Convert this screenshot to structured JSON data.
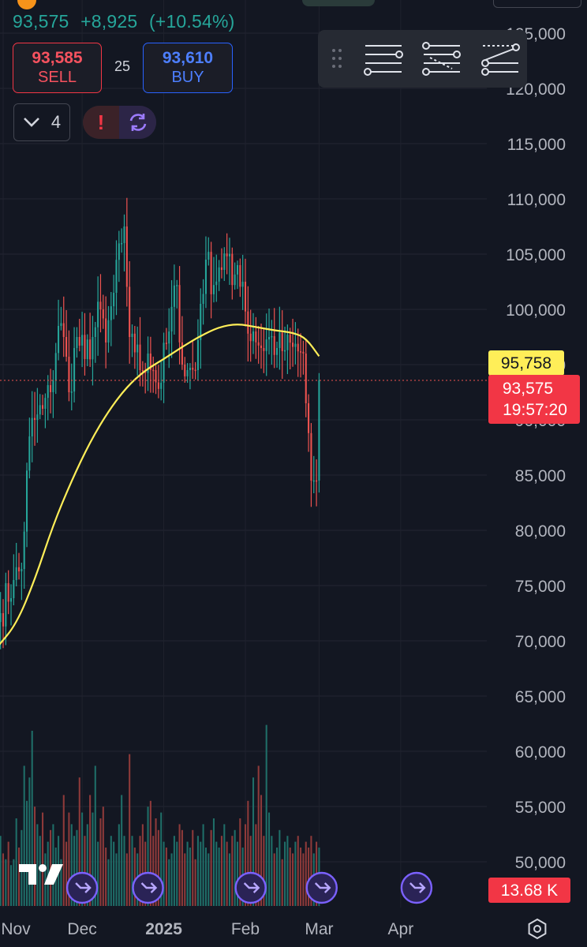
{
  "header": {
    "last_price": "93,575",
    "change": "+8,925",
    "change_pct": "(+10.54%)"
  },
  "trade_panel": {
    "sell_price": "93,585",
    "sell_label": "SELL",
    "spread": "25",
    "buy_price": "93,610",
    "buy_label": "BUY"
  },
  "indicators_toggle": {
    "count": "4"
  },
  "price_labels": {
    "ma_value": "95,758",
    "last_value": "93,575",
    "countdown": "19:57:20",
    "volume_value": "13.68 K"
  },
  "icons": [
    "bitcoin-logo",
    "chevron-down-icon",
    "alert-exclamation-icon",
    "sync-icon",
    "drag-handle-icon",
    "horizontal-lines-icon",
    "parallel-channel-icon",
    "trend-lines-icon",
    "event-arrow-icon",
    "settings-hexagon-icon",
    "tradingview-logo"
  ],
  "colors": {
    "background": "#131722",
    "up": "#26a69a",
    "down": "#ef5350",
    "volume_up": "#1f6e68",
    "volume_down": "#8e3a3a",
    "moving_average": "#ffee58",
    "ma_label_bg": "#ffee58",
    "price_label_bg": "#f23645",
    "event_accent": "#7b61ff"
  },
  "chart_data": {
    "type": "candlestick",
    "interval": "1D",
    "y_axis": {
      "ticks": [
        "50,000",
        "55,000",
        "60,000",
        "65,000",
        "70,000",
        "75,000",
        "80,000",
        "85,000",
        "90,000",
        "95,000",
        "100,000",
        "105,000",
        "110,000",
        "115,000",
        "120,000",
        "125,000"
      ],
      "ylim": [
        49000,
        126500
      ],
      "side": "right"
    },
    "x_axis": {
      "ticks": [
        "Nov",
        "Dec",
        "2025",
        "Feb",
        "Mar",
        "Apr"
      ],
      "tick_dates": [
        "2024-11-01",
        "2024-12-01",
        "2025-01-01",
        "2025-02-01",
        "2025-03-01",
        "2025-04-01"
      ],
      "xlim": [
        "2024-11-01",
        "2025-05-04"
      ]
    },
    "grid": true,
    "close_series": [
      {
        "d": "2024-10-31",
        "c": 72500
      },
      {
        "d": "2024-11-05",
        "c": 75500
      },
      {
        "d": "2024-11-08",
        "c": 76500
      },
      {
        "d": "2024-11-11",
        "c": 88500
      },
      {
        "d": "2024-11-13",
        "c": 90000
      },
      {
        "d": "2024-11-16",
        "c": 91000
      },
      {
        "d": "2024-11-19",
        "c": 92500
      },
      {
        "d": "2024-11-22",
        "c": 98500
      },
      {
        "d": "2024-11-24",
        "c": 97500
      },
      {
        "d": "2024-11-26",
        "c": 92500
      },
      {
        "d": "2024-11-29",
        "c": 97500
      },
      {
        "d": "2024-12-02",
        "c": 95500
      },
      {
        "d": "2024-12-05",
        "c": 97500
      },
      {
        "d": "2024-12-08",
        "c": 100000
      },
      {
        "d": "2024-12-10",
        "c": 97000
      },
      {
        "d": "2024-12-13",
        "c": 101500
      },
      {
        "d": "2024-12-16",
        "c": 106000
      },
      {
        "d": "2024-12-17",
        "c": 107500
      },
      {
        "d": "2024-12-19",
        "c": 97500
      },
      {
        "d": "2024-12-20",
        "c": 97800
      },
      {
        "d": "2024-12-23",
        "c": 94500
      },
      {
        "d": "2024-12-26",
        "c": 96000
      },
      {
        "d": "2024-12-28",
        "c": 94500
      },
      {
        "d": "2024-12-30",
        "c": 92800
      },
      {
        "d": "2025-01-03",
        "c": 98000
      },
      {
        "d": "2025-01-06",
        "c": 102200
      },
      {
        "d": "2025-01-08",
        "c": 95000
      },
      {
        "d": "2025-01-10",
        "c": 94500
      },
      {
        "d": "2025-01-13",
        "c": 94500
      },
      {
        "d": "2025-01-15",
        "c": 100500
      },
      {
        "d": "2025-01-17",
        "c": 104500
      },
      {
        "d": "2025-01-20",
        "c": 102200
      },
      {
        "d": "2025-01-22",
        "c": 103800
      },
      {
        "d": "2025-01-25",
        "c": 104800
      },
      {
        "d": "2025-01-27",
        "c": 102200
      },
      {
        "d": "2025-01-29",
        "c": 104000
      },
      {
        "d": "2025-01-31",
        "c": 102500
      },
      {
        "d": "2025-02-02",
        "c": 97800
      },
      {
        "d": "2025-02-04",
        "c": 98000
      },
      {
        "d": "2025-02-07",
        "c": 96500
      },
      {
        "d": "2025-02-10",
        "c": 97500
      },
      {
        "d": "2025-02-13",
        "c": 96500
      },
      {
        "d": "2025-02-16",
        "c": 96300
      },
      {
        "d": "2025-02-19",
        "c": 96600
      },
      {
        "d": "2025-02-21",
        "c": 96200
      },
      {
        "d": "2025-02-23",
        "c": 96000
      },
      {
        "d": "2025-02-24",
        "c": 91500
      },
      {
        "d": "2025-02-25",
        "c": 88800
      },
      {
        "d": "2025-02-26",
        "c": 84500
      },
      {
        "d": "2025-02-28",
        "c": 84500
      },
      {
        "d": "2025-03-01",
        "c": 93575
      }
    ],
    "series": [
      {
        "kind": "moving_average",
        "points": [
          {
            "d": "2024-10-30",
            "v": 69500
          },
          {
            "d": "2024-11-06",
            "v": 71500
          },
          {
            "d": "2024-11-13",
            "v": 75500
          },
          {
            "d": "2024-11-20",
            "v": 80500
          },
          {
            "d": "2024-11-27",
            "v": 84500
          },
          {
            "d": "2024-12-04",
            "v": 88000
          },
          {
            "d": "2024-12-11",
            "v": 90800
          },
          {
            "d": "2024-12-18",
            "v": 93000
          },
          {
            "d": "2024-12-25",
            "v": 94500
          },
          {
            "d": "2025-01-01",
            "v": 95500
          },
          {
            "d": "2025-01-08",
            "v": 96600
          },
          {
            "d": "2025-01-15",
            "v": 97600
          },
          {
            "d": "2025-01-22",
            "v": 98400
          },
          {
            "d": "2025-01-29",
            "v": 98700
          },
          {
            "d": "2025-02-05",
            "v": 98400
          },
          {
            "d": "2025-02-12",
            "v": 98100
          },
          {
            "d": "2025-02-19",
            "v": 97900
          },
          {
            "d": "2025-02-24",
            "v": 97400
          },
          {
            "d": "2025-03-01",
            "v": 95758
          }
        ]
      },
      {
        "kind": "volume",
        "scale_max_k": 200,
        "values_k": [
          60,
          45,
          40,
          55,
          35,
          40,
          75,
          50,
          65,
          120,
          90,
          110,
          150,
          85,
          70,
          60,
          80,
          45,
          55,
          65,
          70,
          50,
          60,
          40,
          95,
          55,
          80,
          70,
          60,
          65,
          110,
          80,
          60,
          70,
          95,
          80,
          120,
          55,
          75,
          85,
          50,
          40,
          60,
          55,
          45,
          70,
          95,
          60,
          45,
          130,
          60,
          50,
          45,
          60,
          70,
          55,
          85,
          90,
          60,
          75,
          65,
          80,
          55,
          50,
          40,
          45,
          60,
          55,
          70,
          65,
          45,
          55,
          50,
          65,
          40,
          60,
          55,
          70,
          50,
          45,
          65,
          75,
          55,
          50,
          60,
          70,
          55,
          45,
          60,
          65,
          55,
          75,
          50,
          70,
          90,
          60,
          110,
          70,
          120,
          95,
          60,
          155,
          80,
          60,
          45,
          50,
          65,
          40,
          55,
          60,
          50,
          45,
          55,
          60,
          50,
          45,
          55,
          50,
          60,
          45,
          55,
          50,
          45,
          55,
          60,
          50,
          95,
          70,
          160,
          130,
          95,
          55,
          60,
          13.68
        ]
      }
    ],
    "price_lines": [
      {
        "kind": "last_price",
        "value": 93575
      }
    ],
    "event_markers_dates": [
      "2024-12-01",
      "2024-12-26",
      "2025-02-03",
      "2025-03-02",
      "2025-04-07"
    ]
  }
}
